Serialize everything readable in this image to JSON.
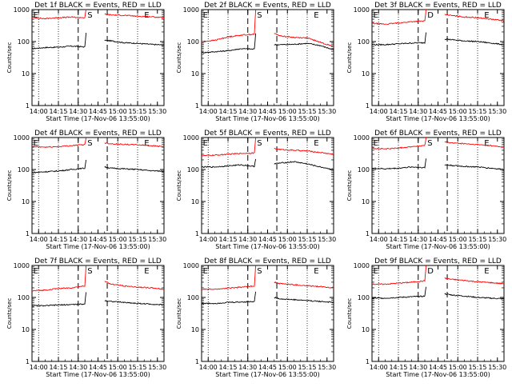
{
  "chart_data": [
    {
      "type": "line",
      "title": "Det 1f BLACK = Events, RED = LLD",
      "xlabel": "Start Time (17-Nov-06 13:55:00)",
      "ylabel": "Counts/sec",
      "x_ticks": [
        "14:00",
        "14:15",
        "14:30",
        "14:45",
        "15:00",
        "15:15",
        "15:30"
      ],
      "y_ticks": [
        "1",
        "10",
        "100",
        "1000"
      ],
      "y_scale": "log",
      "ylim": [
        1,
        1000
      ],
      "xlim_minutes": [
        0,
        100
      ],
      "markers": [
        "E",
        "S",
        "E"
      ],
      "series": [
        {
          "name": "Events",
          "color": "#000000",
          "x": [
            0,
            10,
            20,
            30,
            40,
            41,
            55,
            60,
            70,
            80,
            90,
            100
          ],
          "values": [
            60,
            65,
            67,
            72,
            68,
            180,
            110,
            105,
            92,
            88,
            82,
            78
          ]
        },
        {
          "name": "LLD",
          "color": "#ff0000",
          "x": [
            0,
            10,
            20,
            30,
            40,
            41,
            55,
            60,
            70,
            80,
            90,
            100
          ],
          "values": [
            560,
            520,
            560,
            580,
            560,
            1000,
            720,
            680,
            660,
            620,
            600,
            560
          ]
        }
      ]
    },
    {
      "type": "line",
      "title": "Det 2f BLACK = Events, RED = LLD",
      "xlabel": "Start Time (17-Nov-06 13:55:00)",
      "ylabel": "Counts/sec",
      "x_ticks": [
        "14:00",
        "14:15",
        "14:30",
        "14:45",
        "15:00",
        "15:15",
        "15:30"
      ],
      "y_ticks": [
        "1",
        "10",
        "100",
        "1000"
      ],
      "y_scale": "log",
      "ylim": [
        1,
        1000
      ],
      "xlim_minutes": [
        0,
        100
      ],
      "markers": [
        "E",
        "S",
        "E"
      ],
      "series": [
        {
          "name": "Events",
          "color": "#000000",
          "x": [
            0,
            10,
            20,
            30,
            40,
            41,
            55,
            60,
            70,
            80,
            90,
            100
          ],
          "values": [
            45,
            48,
            52,
            60,
            58,
            180,
            80,
            80,
            82,
            88,
            75,
            55
          ]
        },
        {
          "name": "LLD",
          "color": "#ff0000",
          "x": [
            0,
            10,
            20,
            30,
            40,
            41,
            55,
            60,
            70,
            80,
            90,
            100
          ],
          "values": [
            100,
            110,
            140,
            160,
            170,
            1000,
            180,
            150,
            135,
            130,
            95,
            70
          ]
        }
      ]
    },
    {
      "type": "line",
      "title": "Det 3f BLACK = Events, RED = LLD",
      "xlabel": "Start Time (17-Nov-06 13:55:00)",
      "ylabel": "Counts/sec",
      "x_ticks": [
        "14:00",
        "14:15",
        "14:30",
        "14:45",
        "15:00",
        "15:15",
        "15:30"
      ],
      "y_ticks": [
        "1",
        "10",
        "100",
        "1000"
      ],
      "y_scale": "log",
      "ylim": [
        1,
        1000
      ],
      "xlim_minutes": [
        0,
        100
      ],
      "markers": [
        "E",
        "D",
        "E"
      ],
      "series": [
        {
          "name": "Events",
          "color": "#000000",
          "x": [
            0,
            10,
            20,
            30,
            40,
            41,
            55,
            60,
            70,
            80,
            90,
            100
          ],
          "values": [
            80,
            80,
            85,
            90,
            92,
            200,
            120,
            115,
            105,
            100,
            90,
            80
          ]
        },
        {
          "name": "LLD",
          "color": "#ff0000",
          "x": [
            0,
            10,
            20,
            30,
            40,
            41,
            55,
            60,
            70,
            80,
            90,
            100
          ],
          "values": [
            370,
            350,
            380,
            420,
            440,
            1000,
            720,
            650,
            590,
            560,
            500,
            450
          ]
        }
      ]
    },
    {
      "type": "line",
      "title": "Det 4f BLACK = Events, RED = LLD",
      "xlabel": "Start Time (17-Nov-06 13:55:00)",
      "ylabel": "Counts/sec",
      "x_ticks": [
        "14:00",
        "14:15",
        "14:30",
        "14:45",
        "15:00",
        "15:15",
        "15:30"
      ],
      "y_ticks": [
        "1",
        "10",
        "100",
        "1000"
      ],
      "y_scale": "log",
      "ylim": [
        1,
        1000
      ],
      "xlim_minutes": [
        0,
        100
      ],
      "markers": [
        "E",
        "S",
        "E"
      ],
      "series": [
        {
          "name": "Events",
          "color": "#000000",
          "x": [
            0,
            10,
            20,
            30,
            40,
            41,
            55,
            60,
            70,
            80,
            90,
            100
          ],
          "values": [
            80,
            85,
            90,
            100,
            110,
            200,
            120,
            110,
            105,
            100,
            92,
            88
          ]
        },
        {
          "name": "LLD",
          "color": "#ff0000",
          "x": [
            0,
            10,
            20,
            30,
            40,
            41,
            55,
            60,
            70,
            80,
            90,
            100
          ],
          "values": [
            520,
            500,
            520,
            560,
            600,
            1000,
            680,
            640,
            610,
            590,
            560,
            520
          ]
        }
      ]
    },
    {
      "type": "line",
      "title": "Det 5f BLACK = Events, RED = LLD",
      "xlabel": "Start Time (17-Nov-06 13:55:00)",
      "ylabel": "Counts/sec",
      "x_ticks": [
        "14:00",
        "14:15",
        "14:30",
        "14:45",
        "15:00",
        "15:15",
        "15:30"
      ],
      "y_ticks": [
        "1",
        "10",
        "100",
        "1000"
      ],
      "y_scale": "log",
      "ylim": [
        1,
        1000
      ],
      "xlim_minutes": [
        0,
        100
      ],
      "markers": [
        "E",
        "S",
        "E"
      ],
      "series": [
        {
          "name": "Events",
          "color": "#000000",
          "x": [
            0,
            10,
            20,
            30,
            40,
            41,
            55,
            60,
            70,
            80,
            90,
            100
          ],
          "values": [
            120,
            120,
            130,
            140,
            125,
            220,
            150,
            160,
            175,
            150,
            120,
            100
          ]
        },
        {
          "name": "LLD",
          "color": "#ff0000",
          "x": [
            0,
            10,
            20,
            30,
            40,
            41,
            55,
            60,
            70,
            80,
            90,
            100
          ],
          "values": [
            270,
            280,
            300,
            320,
            330,
            1000,
            450,
            420,
            400,
            380,
            340,
            300
          ]
        }
      ]
    },
    {
      "type": "line",
      "title": "Det 6f BLACK = Events, RED = LLD",
      "xlabel": "Start Time (17-Nov-06 13:55:00)",
      "ylabel": "Counts/sec",
      "x_ticks": [
        "14:00",
        "14:15",
        "14:30",
        "14:45",
        "15:00",
        "15:15",
        "15:30"
      ],
      "y_ticks": [
        "1",
        "10",
        "100",
        "1000"
      ],
      "y_scale": "log",
      "ylim": [
        1,
        1000
      ],
      "xlim_minutes": [
        0,
        100
      ],
      "markers": [
        "E",
        "S",
        "E"
      ],
      "series": [
        {
          "name": "Events",
          "color": "#000000",
          "x": [
            0,
            10,
            20,
            30,
            40,
            41,
            55,
            60,
            70,
            80,
            90,
            100
          ],
          "values": [
            110,
            105,
            110,
            120,
            115,
            220,
            140,
            135,
            125,
            120,
            110,
            100
          ]
        },
        {
          "name": "LLD",
          "color": "#ff0000",
          "x": [
            0,
            10,
            20,
            30,
            40,
            41,
            55,
            60,
            70,
            80,
            90,
            100
          ],
          "values": [
            460,
            440,
            470,
            520,
            560,
            1000,
            720,
            680,
            640,
            600,
            560,
            500
          ]
        }
      ]
    },
    {
      "type": "line",
      "title": "Det 7f BLACK = Events, RED = LLD",
      "xlabel": "Start Time (17-Nov-06 13:55:00)",
      "ylabel": "Counts/sec",
      "x_ticks": [
        "14:00",
        "14:15",
        "14:30",
        "14:45",
        "15:00",
        "15:15",
        "15:30"
      ],
      "y_ticks": [
        "1",
        "10",
        "100",
        "1000"
      ],
      "y_scale": "log",
      "ylim": [
        1,
        1000
      ],
      "xlim_minutes": [
        0,
        100
      ],
      "markers": [
        "E",
        "S",
        "E"
      ],
      "series": [
        {
          "name": "Events",
          "color": "#000000",
          "x": [
            0,
            10,
            20,
            30,
            40,
            41,
            55,
            60,
            70,
            80,
            90,
            100
          ],
          "values": [
            55,
            55,
            58,
            60,
            62,
            150,
            80,
            75,
            70,
            65,
            62,
            58
          ]
        },
        {
          "name": "LLD",
          "color": "#ff0000",
          "x": [
            0,
            10,
            20,
            30,
            40,
            41,
            55,
            60,
            70,
            80,
            90,
            100
          ],
          "values": [
            160,
            170,
            190,
            200,
            230,
            1000,
            320,
            260,
            230,
            210,
            200,
            180
          ]
        }
      ]
    },
    {
      "type": "line",
      "title": "Det 8f BLACK = Events, RED = LLD",
      "xlabel": "Start Time (17-Nov-06 13:55:00)",
      "ylabel": "Counts/sec",
      "x_ticks": [
        "14:00",
        "14:15",
        "14:30",
        "14:45",
        "15:00",
        "15:15",
        "15:30"
      ],
      "y_ticks": [
        "1",
        "10",
        "100",
        "1000"
      ],
      "y_scale": "log",
      "ylim": [
        1,
        1000
      ],
      "xlim_minutes": [
        0,
        100
      ],
      "markers": [
        "E",
        "S",
        "E"
      ],
      "series": [
        {
          "name": "Events",
          "color": "#000000",
          "x": [
            0,
            10,
            20,
            30,
            40,
            41,
            55,
            60,
            70,
            80,
            90,
            100
          ],
          "values": [
            65,
            65,
            70,
            72,
            75,
            150,
            100,
            90,
            85,
            80,
            75,
            70
          ]
        },
        {
          "name": "LLD",
          "color": "#ff0000",
          "x": [
            0,
            10,
            20,
            30,
            40,
            41,
            55,
            60,
            70,
            80,
            90,
            100
          ],
          "values": [
            180,
            180,
            195,
            210,
            230,
            1000,
            300,
            270,
            250,
            230,
            220,
            200
          ]
        }
      ]
    },
    {
      "type": "line",
      "title": "Det 9f BLACK = Events, RED = LLD",
      "xlabel": "Start Time (17-Nov-06 13:55:00)",
      "ylabel": "Counts/sec",
      "x_ticks": [
        "14:00",
        "14:15",
        "14:30",
        "14:45",
        "15:00",
        "15:15",
        "15:30"
      ],
      "y_ticks": [
        "1",
        "10",
        "100",
        "1000"
      ],
      "y_scale": "log",
      "ylim": [
        1,
        1000
      ],
      "xlim_minutes": [
        0,
        100
      ],
      "markers": [
        "E",
        "D",
        "E"
      ],
      "series": [
        {
          "name": "Events",
          "color": "#000000",
          "x": [
            0,
            10,
            20,
            30,
            40,
            41,
            55,
            60,
            70,
            80,
            90,
            100
          ],
          "values": [
            95,
            95,
            100,
            105,
            110,
            220,
            130,
            120,
            110,
            100,
            95,
            90
          ]
        },
        {
          "name": "LLD",
          "color": "#ff0000",
          "x": [
            0,
            10,
            20,
            30,
            40,
            41,
            55,
            60,
            70,
            80,
            90,
            100
          ],
          "values": [
            260,
            260,
            280,
            300,
            330,
            1000,
            400,
            370,
            340,
            310,
            290,
            270
          ]
        }
      ]
    }
  ]
}
